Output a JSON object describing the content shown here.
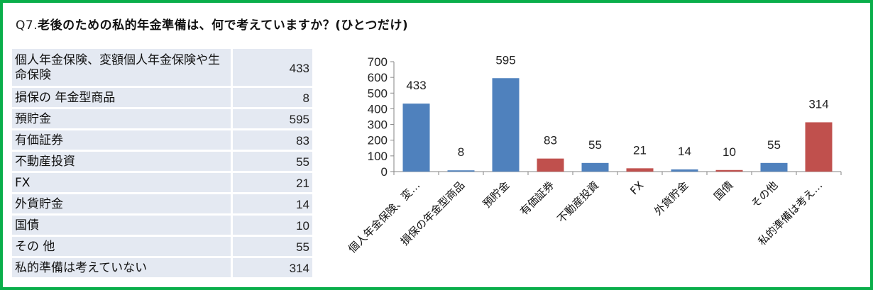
{
  "title": {
    "prefix": "Q7.",
    "text": "老後のための私的年金準備は、何で考えていますか？(ひとつだけ)"
  },
  "table": {
    "rows": [
      {
        "label": "個人年金保険、変額個人年金保険や生命保険",
        "value": "433"
      },
      {
        "label": "損保の 年金型商品",
        "value": "8"
      },
      {
        "label": "預貯金",
        "value": "595"
      },
      {
        "label": "有価証券",
        "value": "83"
      },
      {
        "label": "不動産投資",
        "value": "55"
      },
      {
        "label": "FX",
        "value": "21"
      },
      {
        "label": "外貨貯金",
        "value": "14"
      },
      {
        "label": "国債",
        "value": "10"
      },
      {
        "label": "その 他",
        "value": "55"
      },
      {
        "label": "私的準備は考えていない",
        "value": "314"
      }
    ]
  },
  "colors": {
    "frame": "#0aae4a",
    "bar_blue": "#4f81bd",
    "bar_red": "#c0504d",
    "table_bg": "#e4e9f2"
  },
  "chart_data": {
    "type": "bar",
    "title": "",
    "xlabel": "",
    "ylabel": "",
    "ylim": [
      0,
      700
    ],
    "yticks": [
      0,
      100,
      200,
      300,
      400,
      500,
      600,
      700
    ],
    "grid": false,
    "legend": null,
    "categories": [
      "個人年金保険、変…",
      "損保の年金型商品",
      "預貯金",
      "有価証券",
      "不動産投資",
      "FX",
      "外貨貯金",
      "国債",
      "その他",
      "私的準備は考え…"
    ],
    "values": [
      433,
      8,
      595,
      83,
      55,
      21,
      14,
      10,
      55,
      314
    ],
    "bar_colors": [
      "#4f81bd",
      "#4f81bd",
      "#4f81bd",
      "#c0504d",
      "#4f81bd",
      "#c0504d",
      "#4f81bd",
      "#c0504d",
      "#4f81bd",
      "#c0504d"
    ],
    "data_labels": [
      "433",
      "8",
      "595",
      "83",
      "55",
      "21",
      "14",
      "10",
      "55",
      "314"
    ]
  }
}
